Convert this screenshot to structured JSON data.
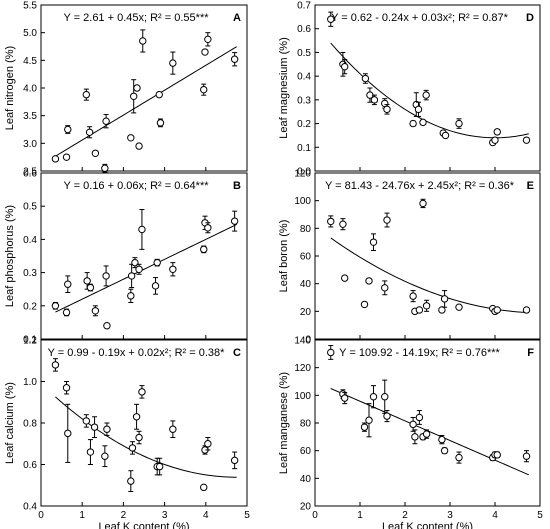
{
  "figure": {
    "shared_xlabel": "Leaf K content (%)"
  },
  "chart_data": [
    {
      "id": "A",
      "type": "scatter",
      "letter": "A",
      "equation": "Y = 2.61 + 0.45x; R² = 0.55***",
      "ylabel": "Leaf nitrogen (%)",
      "xlim": [
        0,
        5
      ],
      "ylim": [
        2.5,
        5.5
      ],
      "xticks": [
        0,
        1,
        2,
        3,
        4,
        5
      ],
      "yticks": [
        2.5,
        3.0,
        3.5,
        4.0,
        4.5,
        5.0,
        5.5
      ],
      "ytick_labels": [
        "2.5",
        "3.0",
        "3.5",
        "4.0",
        "4.5",
        "5.0",
        "5.5"
      ],
      "show_xticklabels": false,
      "fit": {
        "kind": "linear",
        "coef": [
          2.61,
          0.45
        ],
        "xrange": [
          0.35,
          4.75
        ]
      },
      "points": [
        {
          "x": 0.35,
          "y": 2.72,
          "err": 0.02
        },
        {
          "x": 0.62,
          "y": 2.75,
          "err": 0.03
        },
        {
          "x": 0.65,
          "y": 3.25,
          "err": 0.07
        },
        {
          "x": 1.1,
          "y": 3.88,
          "err": 0.1
        },
        {
          "x": 1.18,
          "y": 3.2,
          "err": 0.1
        },
        {
          "x": 1.32,
          "y": 2.82,
          "err": 0.03
        },
        {
          "x": 1.55,
          "y": 2.55,
          "err": 0.07
        },
        {
          "x": 1.58,
          "y": 3.4,
          "err": 0.12
        },
        {
          "x": 2.18,
          "y": 3.1,
          "err": 0.03
        },
        {
          "x": 2.25,
          "y": 3.85,
          "err": 0.3
        },
        {
          "x": 2.33,
          "y": 4.0,
          "err": 0.03
        },
        {
          "x": 2.38,
          "y": 2.95,
          "err": 0.03
        },
        {
          "x": 2.47,
          "y": 4.85,
          "err": 0.2
        },
        {
          "x": 2.9,
          "y": 3.37,
          "err": 0.07
        },
        {
          "x": 2.87,
          "y": 3.88,
          "err": 0.03
        },
        {
          "x": 3.2,
          "y": 4.45,
          "err": 0.2
        },
        {
          "x": 3.95,
          "y": 3.97,
          "err": 0.1
        },
        {
          "x": 3.98,
          "y": 4.65,
          "err": 0.03
        },
        {
          "x": 4.05,
          "y": 4.88,
          "err": 0.12
        },
        {
          "x": 4.7,
          "y": 4.52,
          "err": 0.12
        }
      ]
    },
    {
      "id": "B",
      "type": "scatter",
      "letter": "B",
      "equation": "Y = 0.16 + 0.06x; R² = 0.64***",
      "ylabel": "Leaf phosphorus (%)",
      "xlim": [
        0,
        5
      ],
      "ylim": [
        0.1,
        0.6
      ],
      "xticks": [
        0,
        1,
        2,
        3,
        4,
        5
      ],
      "yticks": [
        0.1,
        0.2,
        0.3,
        0.4,
        0.5,
        0.6
      ],
      "ytick_labels": [
        "0.1",
        "0.2",
        "0.3",
        "0.4",
        "0.5",
        "0.6"
      ],
      "show_xticklabels": false,
      "fit": {
        "kind": "linear",
        "coef": [
          0.16,
          0.06
        ],
        "xrange": [
          0.35,
          4.75
        ]
      },
      "points": [
        {
          "x": 0.35,
          "y": 0.2,
          "err": 0.01
        },
        {
          "x": 0.62,
          "y": 0.18,
          "err": 0.01
        },
        {
          "x": 0.65,
          "y": 0.265,
          "err": 0.025
        },
        {
          "x": 1.12,
          "y": 0.275,
          "err": 0.025
        },
        {
          "x": 1.2,
          "y": 0.255,
          "err": 0.01
        },
        {
          "x": 1.32,
          "y": 0.185,
          "err": 0.015
        },
        {
          "x": 1.58,
          "y": 0.29,
          "err": 0.03
        },
        {
          "x": 1.6,
          "y": 0.14,
          "err": 0.005
        },
        {
          "x": 2.18,
          "y": 0.23,
          "err": 0.02
        },
        {
          "x": 2.2,
          "y": 0.29,
          "err": 0.035
        },
        {
          "x": 2.28,
          "y": 0.33,
          "err": 0.015
        },
        {
          "x": 2.38,
          "y": 0.31,
          "err": 0.015
        },
        {
          "x": 2.45,
          "y": 0.43,
          "err": 0.06
        },
        {
          "x": 2.78,
          "y": 0.26,
          "err": 0.025
        },
        {
          "x": 2.82,
          "y": 0.33,
          "err": 0.01
        },
        {
          "x": 3.2,
          "y": 0.31,
          "err": 0.02
        },
        {
          "x": 3.95,
          "y": 0.37,
          "err": 0.01
        },
        {
          "x": 3.98,
          "y": 0.45,
          "err": 0.02
        },
        {
          "x": 4.05,
          "y": 0.435,
          "err": 0.015
        },
        {
          "x": 4.7,
          "y": 0.455,
          "err": 0.03
        }
      ]
    },
    {
      "id": "C",
      "type": "scatter",
      "letter": "C",
      "equation": "Y = 0.99 - 0.19x + 0.02x²; R² = 0.38*",
      "ylabel": "Leaf calcium (%)",
      "xlim": [
        0,
        5
      ],
      "ylim": [
        0.4,
        1.2
      ],
      "xticks": [
        0,
        1,
        2,
        3,
        4,
        5
      ],
      "yticks": [
        0.4,
        0.6,
        0.8,
        1.0,
        1.2
      ],
      "ytick_labels": [
        "0.4",
        "0.6",
        "0.8",
        "1.0",
        "1.2"
      ],
      "show_xticklabels": true,
      "fit": {
        "kind": "quadratic",
        "coef": [
          0.99,
          -0.19,
          0.02
        ],
        "xrange": [
          0.35,
          4.75
        ]
      },
      "points": [
        {
          "x": 0.35,
          "y": 1.08,
          "err": 0.03
        },
        {
          "x": 0.62,
          "y": 0.97,
          "err": 0.03
        },
        {
          "x": 0.65,
          "y": 0.75,
          "err": 0.14
        },
        {
          "x": 1.1,
          "y": 0.81,
          "err": 0.03
        },
        {
          "x": 1.2,
          "y": 0.66,
          "err": 0.06
        },
        {
          "x": 1.3,
          "y": 0.78,
          "err": 0.05
        },
        {
          "x": 1.55,
          "y": 0.64,
          "err": 0.05
        },
        {
          "x": 1.6,
          "y": 0.77,
          "err": 0.03
        },
        {
          "x": 2.18,
          "y": 0.52,
          "err": 0.05
        },
        {
          "x": 2.22,
          "y": 0.68,
          "err": 0.03
        },
        {
          "x": 2.32,
          "y": 0.83,
          "err": 0.06
        },
        {
          "x": 2.38,
          "y": 0.73,
          "err": 0.03
        },
        {
          "x": 2.45,
          "y": 0.95,
          "err": 0.03
        },
        {
          "x": 2.82,
          "y": 0.59,
          "err": 0.04
        },
        {
          "x": 2.88,
          "y": 0.59,
          "err": 0.04
        },
        {
          "x": 3.2,
          "y": 0.77,
          "err": 0.04
        },
        {
          "x": 3.95,
          "y": 0.49,
          "err": 0.01
        },
        {
          "x": 3.98,
          "y": 0.67,
          "err": 0.02
        },
        {
          "x": 4.05,
          "y": 0.7,
          "err": 0.03
        },
        {
          "x": 4.7,
          "y": 0.62,
          "err": 0.04
        }
      ]
    },
    {
      "id": "D",
      "type": "scatter",
      "letter": "D",
      "equation": "Y = 0.62 - 0.24x + 0.03x²; R² = 0.87*",
      "ylabel": "Leaf magnesium (%)",
      "xlim": [
        0,
        5
      ],
      "ylim": [
        0.0,
        0.7
      ],
      "xticks": [
        0,
        1,
        2,
        3,
        4,
        5
      ],
      "yticks": [
        0.0,
        0.1,
        0.2,
        0.3,
        0.4,
        0.5,
        0.6,
        0.7
      ],
      "ytick_labels": [
        "0.0",
        "0.1",
        "0.2",
        "0.3",
        "0.4",
        "0.5",
        "0.6",
        "0.7"
      ],
      "show_xticklabels": false,
      "fit": {
        "kind": "quadratic",
        "coef": [
          0.62,
          -0.24,
          0.03
        ],
        "xrange": [
          0.35,
          4.75
        ]
      },
      "points": [
        {
          "x": 0.35,
          "y": 0.64,
          "err": 0.03
        },
        {
          "x": 0.62,
          "y": 0.45,
          "err": 0.05
        },
        {
          "x": 0.66,
          "y": 0.44,
          "err": 0.03
        },
        {
          "x": 1.12,
          "y": 0.39,
          "err": 0.02
        },
        {
          "x": 1.22,
          "y": 0.32,
          "err": 0.03
        },
        {
          "x": 1.32,
          "y": 0.3,
          "err": 0.02
        },
        {
          "x": 1.55,
          "y": 0.285,
          "err": 0.02
        },
        {
          "x": 1.6,
          "y": 0.26,
          "err": 0.02
        },
        {
          "x": 2.18,
          "y": 0.2,
          "err": 0.01
        },
        {
          "x": 2.25,
          "y": 0.28,
          "err": 0.05
        },
        {
          "x": 2.3,
          "y": 0.26,
          "err": 0.03
        },
        {
          "x": 2.4,
          "y": 0.205,
          "err": 0.01
        },
        {
          "x": 2.47,
          "y": 0.32,
          "err": 0.02
        },
        {
          "x": 2.85,
          "y": 0.16,
          "err": 0.01
        },
        {
          "x": 2.9,
          "y": 0.15,
          "err": 0.01
        },
        {
          "x": 3.2,
          "y": 0.2,
          "err": 0.02
        },
        {
          "x": 3.95,
          "y": 0.12,
          "err": 0.01
        },
        {
          "x": 4.0,
          "y": 0.13,
          "err": 0.01
        },
        {
          "x": 4.05,
          "y": 0.165,
          "err": 0.01
        },
        {
          "x": 4.7,
          "y": 0.13,
          "err": 0.01
        }
      ]
    },
    {
      "id": "E",
      "type": "scatter",
      "letter": "E",
      "equation": "Y = 81.43 - 24.76x + 2.45x²; R² = 0.36*",
      "ylabel": "Leaf boron (%)",
      "xlim": [
        0,
        5
      ],
      "ylim": [
        0,
        120
      ],
      "xticks": [
        0,
        1,
        2,
        3,
        4,
        5
      ],
      "yticks": [
        0,
        20,
        40,
        60,
        80,
        100,
        120
      ],
      "ytick_labels": [
        "0",
        "20",
        "40",
        "60",
        "80",
        "100",
        "120"
      ],
      "show_xticklabels": false,
      "fit": {
        "kind": "quadratic",
        "coef": [
          81.43,
          -24.76,
          2.45
        ],
        "xrange": [
          0.35,
          4.75
        ]
      },
      "points": [
        {
          "x": 0.35,
          "y": 85,
          "err": 4
        },
        {
          "x": 0.62,
          "y": 83,
          "err": 4
        },
        {
          "x": 0.66,
          "y": 44,
          "err": 1
        },
        {
          "x": 1.1,
          "y": 25,
          "err": 1
        },
        {
          "x": 1.2,
          "y": 42,
          "err": 1
        },
        {
          "x": 1.3,
          "y": 70,
          "err": 6
        },
        {
          "x": 1.55,
          "y": 37,
          "err": 5
        },
        {
          "x": 1.6,
          "y": 86,
          "err": 5
        },
        {
          "x": 2.18,
          "y": 31,
          "err": 4
        },
        {
          "x": 2.22,
          "y": 20,
          "err": 1
        },
        {
          "x": 2.32,
          "y": 21,
          "err": 1
        },
        {
          "x": 2.4,
          "y": 98,
          "err": 3
        },
        {
          "x": 2.48,
          "y": 24,
          "err": 4
        },
        {
          "x": 2.82,
          "y": 21,
          "err": 1
        },
        {
          "x": 2.88,
          "y": 29,
          "err": 6
        },
        {
          "x": 3.2,
          "y": 23,
          "err": 1
        },
        {
          "x": 3.95,
          "y": 22,
          "err": 1
        },
        {
          "x": 4.0,
          "y": 20,
          "err": 1
        },
        {
          "x": 4.05,
          "y": 21,
          "err": 1
        },
        {
          "x": 4.7,
          "y": 21,
          "err": 1
        }
      ]
    },
    {
      "id": "F",
      "type": "scatter",
      "letter": "F",
      "equation": "Y = 109.92 - 14.19x; R² = 0.76***",
      "ylabel": "Leaf manganese (%)",
      "xlim": [
        0,
        5
      ],
      "ylim": [
        20,
        140
      ],
      "xticks": [
        0,
        1,
        2,
        3,
        4,
        5
      ],
      "yticks": [
        20,
        40,
        60,
        80,
        100,
        120,
        140
      ],
      "ytick_labels": [
        "20",
        "40",
        "60",
        "80",
        "100",
        "120",
        "140"
      ],
      "show_xticklabels": true,
      "fit": {
        "kind": "linear",
        "coef": [
          109.92,
          -14.19
        ],
        "xrange": [
          0.35,
          4.75
        ]
      },
      "points": [
        {
          "x": 0.35,
          "y": 131,
          "err": 5
        },
        {
          "x": 0.62,
          "y": 101,
          "err": 3
        },
        {
          "x": 0.66,
          "y": 98,
          "err": 4
        },
        {
          "x": 1.1,
          "y": 77,
          "err": 3
        },
        {
          "x": 1.2,
          "y": 82,
          "err": 12
        },
        {
          "x": 1.3,
          "y": 99,
          "err": 8
        },
        {
          "x": 1.55,
          "y": 99,
          "err": 12
        },
        {
          "x": 1.6,
          "y": 85,
          "err": 4
        },
        {
          "x": 2.18,
          "y": 79,
          "err": 5
        },
        {
          "x": 2.22,
          "y": 70,
          "err": 5
        },
        {
          "x": 2.32,
          "y": 84,
          "err": 5
        },
        {
          "x": 2.4,
          "y": 70,
          "err": 2
        },
        {
          "x": 2.48,
          "y": 72,
          "err": 3
        },
        {
          "x": 2.82,
          "y": 68,
          "err": 3
        },
        {
          "x": 2.88,
          "y": 60,
          "err": 2
        },
        {
          "x": 3.2,
          "y": 55,
          "err": 4
        },
        {
          "x": 3.95,
          "y": 55,
          "err": 2
        },
        {
          "x": 4.0,
          "y": 57,
          "err": 2
        },
        {
          "x": 4.05,
          "y": 57,
          "err": 2
        },
        {
          "x": 4.7,
          "y": 56,
          "err": 4
        }
      ]
    }
  ]
}
